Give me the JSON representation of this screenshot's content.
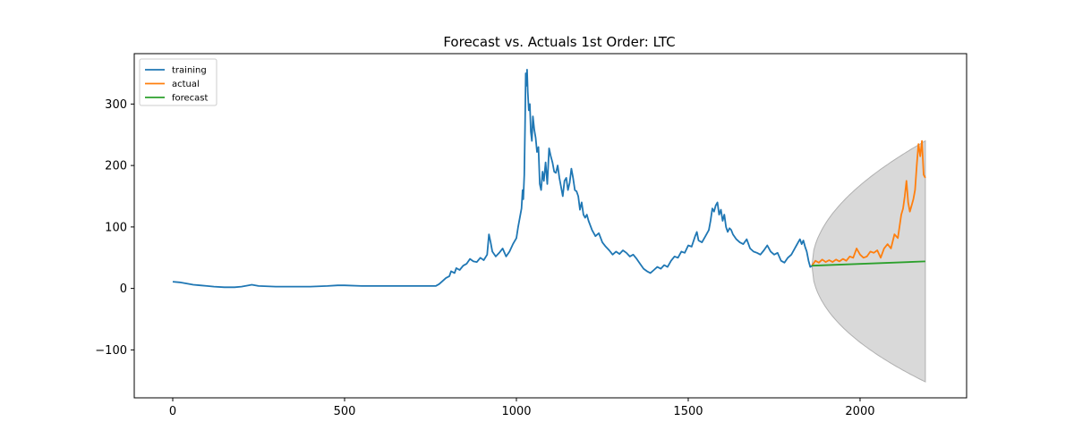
{
  "chart_data": {
    "type": "line",
    "title": "Forecast vs. Actuals 1st Order: LTC",
    "xlabel": "",
    "ylabel": "",
    "xlim": [
      -112,
      2310
    ],
    "ylim": [
      -178,
      382
    ],
    "x_ticks": [
      0,
      500,
      1000,
      1500,
      2000
    ],
    "y_ticks": [
      -100,
      0,
      100,
      200,
      300
    ],
    "grid": false,
    "legend": {
      "placement": "top-left"
    },
    "series": [
      {
        "name": "training",
        "color": "#1f77b4",
        "points": [
          [
            0,
            11
          ],
          [
            20,
            10
          ],
          [
            40,
            8
          ],
          [
            60,
            6
          ],
          [
            80,
            5
          ],
          [
            100,
            4
          ],
          [
            120,
            3
          ],
          [
            150,
            2
          ],
          [
            180,
            2
          ],
          [
            200,
            3
          ],
          [
            220,
            5
          ],
          [
            230,
            6
          ],
          [
            250,
            4
          ],
          [
            300,
            3
          ],
          [
            350,
            3
          ],
          [
            400,
            3
          ],
          [
            450,
            4
          ],
          [
            480,
            5
          ],
          [
            500,
            5
          ],
          [
            550,
            4
          ],
          [
            600,
            4
          ],
          [
            650,
            4
          ],
          [
            700,
            4
          ],
          [
            750,
            4
          ],
          [
            765,
            4
          ],
          [
            775,
            7
          ],
          [
            785,
            12
          ],
          [
            795,
            17
          ],
          [
            805,
            20
          ],
          [
            810,
            28
          ],
          [
            820,
            25
          ],
          [
            825,
            33
          ],
          [
            835,
            30
          ],
          [
            845,
            37
          ],
          [
            855,
            40
          ],
          [
            865,
            48
          ],
          [
            875,
            44
          ],
          [
            885,
            43
          ],
          [
            895,
            50
          ],
          [
            905,
            46
          ],
          [
            915,
            55
          ],
          [
            920,
            88
          ],
          [
            925,
            75
          ],
          [
            930,
            60
          ],
          [
            940,
            52
          ],
          [
            950,
            58
          ],
          [
            960,
            65
          ],
          [
            970,
            52
          ],
          [
            980,
            60
          ],
          [
            990,
            72
          ],
          [
            1000,
            82
          ],
          [
            1005,
            100
          ],
          [
            1010,
            115
          ],
          [
            1015,
            130
          ],
          [
            1018,
            160
          ],
          [
            1020,
            145
          ],
          [
            1023,
            185
          ],
          [
            1025,
            260
          ],
          [
            1027,
            350
          ],
          [
            1029,
            330
          ],
          [
            1031,
            356
          ],
          [
            1033,
            320
          ],
          [
            1036,
            290
          ],
          [
            1039,
            300
          ],
          [
            1042,
            255
          ],
          [
            1045,
            240
          ],
          [
            1048,
            280
          ],
          [
            1052,
            258
          ],
          [
            1056,
            245
          ],
          [
            1060,
            222
          ],
          [
            1064,
            230
          ],
          [
            1068,
            170
          ],
          [
            1072,
            160
          ],
          [
            1076,
            190
          ],
          [
            1080,
            175
          ],
          [
            1085,
            205
          ],
          [
            1090,
            170
          ],
          [
            1095,
            228
          ],
          [
            1100,
            215
          ],
          [
            1105,
            205
          ],
          [
            1110,
            190
          ],
          [
            1115,
            188
          ],
          [
            1120,
            200
          ],
          [
            1125,
            180
          ],
          [
            1130,
            165
          ],
          [
            1135,
            150
          ],
          [
            1140,
            175
          ],
          [
            1145,
            180
          ],
          [
            1150,
            160
          ],
          [
            1155,
            172
          ],
          [
            1160,
            195
          ],
          [
            1165,
            180
          ],
          [
            1170,
            160
          ],
          [
            1175,
            158
          ],
          [
            1180,
            150
          ],
          [
            1185,
            128
          ],
          [
            1190,
            140
          ],
          [
            1195,
            120
          ],
          [
            1200,
            115
          ],
          [
            1205,
            120
          ],
          [
            1210,
            110
          ],
          [
            1220,
            95
          ],
          [
            1230,
            85
          ],
          [
            1240,
            90
          ],
          [
            1250,
            75
          ],
          [
            1260,
            68
          ],
          [
            1270,
            62
          ],
          [
            1280,
            55
          ],
          [
            1290,
            60
          ],
          [
            1300,
            56
          ],
          [
            1310,
            62
          ],
          [
            1320,
            58
          ],
          [
            1330,
            52
          ],
          [
            1340,
            55
          ],
          [
            1350,
            48
          ],
          [
            1360,
            40
          ],
          [
            1370,
            32
          ],
          [
            1380,
            28
          ],
          [
            1390,
            25
          ],
          [
            1400,
            30
          ],
          [
            1410,
            35
          ],
          [
            1420,
            32
          ],
          [
            1430,
            38
          ],
          [
            1440,
            35
          ],
          [
            1450,
            45
          ],
          [
            1460,
            52
          ],
          [
            1470,
            50
          ],
          [
            1480,
            60
          ],
          [
            1490,
            58
          ],
          [
            1500,
            70
          ],
          [
            1510,
            68
          ],
          [
            1520,
            85
          ],
          [
            1525,
            92
          ],
          [
            1530,
            78
          ],
          [
            1540,
            75
          ],
          [
            1550,
            85
          ],
          [
            1560,
            95
          ],
          [
            1565,
            110
          ],
          [
            1570,
            130
          ],
          [
            1575,
            125
          ],
          [
            1580,
            135
          ],
          [
            1585,
            140
          ],
          [
            1590,
            120
          ],
          [
            1595,
            128
          ],
          [
            1600,
            110
          ],
          [
            1605,
            120
          ],
          [
            1610,
            100
          ],
          [
            1615,
            92
          ],
          [
            1620,
            98
          ],
          [
            1625,
            95
          ],
          [
            1630,
            88
          ],
          [
            1640,
            80
          ],
          [
            1650,
            75
          ],
          [
            1660,
            72
          ],
          [
            1670,
            80
          ],
          [
            1680,
            65
          ],
          [
            1690,
            60
          ],
          [
            1700,
            58
          ],
          [
            1710,
            55
          ],
          [
            1720,
            62
          ],
          [
            1730,
            70
          ],
          [
            1740,
            60
          ],
          [
            1750,
            55
          ],
          [
            1760,
            58
          ],
          [
            1770,
            45
          ],
          [
            1780,
            42
          ],
          [
            1790,
            50
          ],
          [
            1800,
            55
          ],
          [
            1810,
            65
          ],
          [
            1815,
            70
          ],
          [
            1820,
            75
          ],
          [
            1825,
            80
          ],
          [
            1830,
            72
          ],
          [
            1835,
            78
          ],
          [
            1840,
            68
          ],
          [
            1845,
            60
          ],
          [
            1850,
            45
          ],
          [
            1855,
            35
          ],
          [
            1860,
            37
          ]
        ]
      },
      {
        "name": "actual",
        "color": "#ff7f0e",
        "points": [
          [
            1860,
            37
          ],
          [
            1870,
            45
          ],
          [
            1880,
            42
          ],
          [
            1890,
            47
          ],
          [
            1900,
            43
          ],
          [
            1910,
            46
          ],
          [
            1920,
            43
          ],
          [
            1930,
            47
          ],
          [
            1940,
            44
          ],
          [
            1950,
            48
          ],
          [
            1960,
            45
          ],
          [
            1970,
            52
          ],
          [
            1980,
            50
          ],
          [
            1990,
            65
          ],
          [
            2000,
            55
          ],
          [
            2010,
            50
          ],
          [
            2020,
            52
          ],
          [
            2030,
            60
          ],
          [
            2040,
            58
          ],
          [
            2050,
            62
          ],
          [
            2060,
            50
          ],
          [
            2070,
            65
          ],
          [
            2080,
            72
          ],
          [
            2090,
            65
          ],
          [
            2100,
            88
          ],
          [
            2110,
            82
          ],
          [
            2120,
            120
          ],
          [
            2125,
            130
          ],
          [
            2130,
            150
          ],
          [
            2135,
            175
          ],
          [
            2140,
            140
          ],
          [
            2145,
            125
          ],
          [
            2150,
            135
          ],
          [
            2155,
            145
          ],
          [
            2160,
            160
          ],
          [
            2165,
            200
          ],
          [
            2170,
            235
          ],
          [
            2175,
            215
          ],
          [
            2180,
            240
          ],
          [
            2185,
            185
          ],
          [
            2190,
            180
          ]
        ]
      },
      {
        "name": "forecast",
        "color": "#2ca02c",
        "points": [
          [
            1860,
            37
          ],
          [
            2190,
            44
          ]
        ]
      }
    ],
    "confidence_band": {
      "color": "#d9d9d9",
      "x_start": 1860,
      "x_end": 2190,
      "center_start": 37,
      "center_end": 44,
      "upper_end": 240,
      "lower_end": -152
    }
  }
}
